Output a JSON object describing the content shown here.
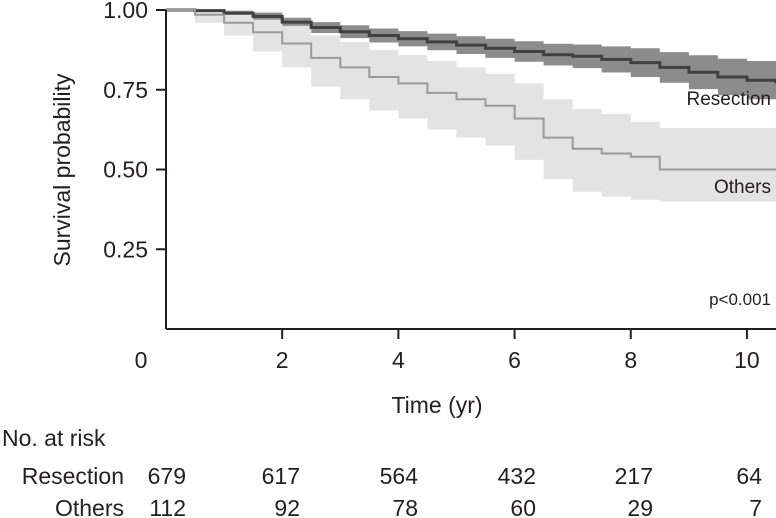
{
  "chart_data": {
    "type": "line",
    "subtype": "kaplan-meier",
    "title": "",
    "xlabel": "Time (yr)",
    "ylabel": "Survival probability",
    "xlim": [
      0,
      10.5
    ],
    "ylim": [
      0,
      1.0
    ],
    "x_ticks": [
      0,
      2,
      4,
      6,
      8,
      10
    ],
    "x_tick_labels": [
      "0",
      "2",
      "4",
      "6",
      "8",
      "10"
    ],
    "y_ticks": [
      1.0,
      0.75,
      0.5,
      0.25
    ],
    "y_tick_labels": [
      "1.00",
      "0.75",
      "0.50",
      "0.25"
    ],
    "grid": false,
    "annotation": "p<0.001",
    "series": [
      {
        "name": "Resection",
        "label": "Resection",
        "line_color": "#404040",
        "band_color": "#8c8c8c",
        "time": [
          0,
          0.5,
          1.0,
          1.5,
          2.0,
          2.5,
          3.0,
          3.5,
          4.0,
          4.5,
          5.0,
          5.5,
          6.0,
          6.5,
          7.0,
          7.5,
          8.0,
          8.5,
          9.0,
          9.5,
          10.0,
          10.5
        ],
        "survival": [
          1.0,
          0.998,
          0.99,
          0.98,
          0.962,
          0.945,
          0.932,
          0.92,
          0.91,
          0.9,
          0.89,
          0.88,
          0.87,
          0.86,
          0.855,
          0.845,
          0.835,
          0.82,
          0.805,
          0.79,
          0.78,
          0.77
        ],
        "lower": [
          1.0,
          0.994,
          0.982,
          0.968,
          0.948,
          0.928,
          0.912,
          0.898,
          0.886,
          0.874,
          0.862,
          0.85,
          0.838,
          0.826,
          0.818,
          0.804,
          0.79,
          0.772,
          0.752,
          0.733,
          0.72,
          0.705
        ],
        "upper": [
          1.0,
          1.0,
          0.998,
          0.992,
          0.976,
          0.962,
          0.952,
          0.942,
          0.934,
          0.926,
          0.918,
          0.91,
          0.902,
          0.894,
          0.892,
          0.886,
          0.88,
          0.868,
          0.858,
          0.847,
          0.84,
          0.835
        ]
      },
      {
        "name": "Others",
        "label": "Others",
        "line_color": "#9a9a9a",
        "band_color": "#e3e3e3",
        "time": [
          0,
          0.5,
          1.0,
          1.5,
          2.0,
          2.5,
          3.0,
          3.5,
          4.0,
          4.5,
          5.0,
          5.5,
          6.0,
          6.5,
          7.0,
          7.5,
          8.0,
          8.5,
          9.0,
          9.5,
          10.0,
          10.5
        ],
        "survival": [
          1.0,
          0.985,
          0.96,
          0.93,
          0.895,
          0.85,
          0.82,
          0.79,
          0.77,
          0.74,
          0.72,
          0.7,
          0.66,
          0.6,
          0.565,
          0.55,
          0.54,
          0.5,
          0.5,
          0.5,
          0.5,
          0.5
        ],
        "lower": [
          1.0,
          0.96,
          0.92,
          0.87,
          0.82,
          0.76,
          0.72,
          0.685,
          0.66,
          0.625,
          0.6,
          0.575,
          0.53,
          0.47,
          0.43,
          0.415,
          0.405,
          0.4,
          0.4,
          0.4,
          0.4,
          0.4
        ],
        "upper": [
          1.0,
          1.0,
          0.99,
          0.97,
          0.95,
          0.92,
          0.9,
          0.875,
          0.86,
          0.84,
          0.82,
          0.8,
          0.77,
          0.72,
          0.69,
          0.675,
          0.65,
          0.63,
          0.63,
          0.63,
          0.63,
          0.63
        ]
      }
    ],
    "risk_table": {
      "title": "No. at risk",
      "times": [
        0,
        2,
        4,
        6,
        8,
        10
      ],
      "rows": [
        {
          "label": "Resection",
          "values": [
            "679",
            "617",
            "564",
            "432",
            "217",
            "64"
          ]
        },
        {
          "label": "Others",
          "values": [
            "112",
            "92",
            "78",
            "60",
            "29",
            "7"
          ]
        }
      ]
    }
  }
}
